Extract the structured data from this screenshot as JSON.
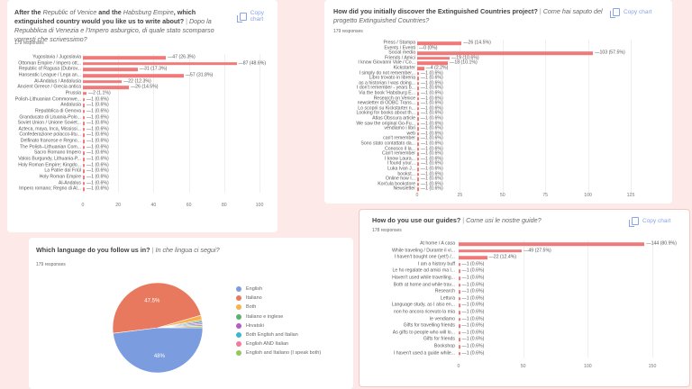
{
  "copy_chart_label": "Copy chart",
  "charts": [
    {
      "id": "c1",
      "title_bold_1": "After the ",
      "title_it_1": "Republic of Venice",
      "title_bold_2": " and the ",
      "title_it_2": "Habsburg Empire",
      "title_bold_3": ", which extinguished country would you like us to write about?",
      "title_sep": " | ",
      "title_italian": "Dopo la Repubblica di Venezia e l'Impero asburgico, di quale stato scomparso vorresti che scrivessimo?",
      "responses": "179 responses",
      "chart_data": {
        "type": "bar",
        "orientation": "horizontal",
        "xlim": [
          0,
          100
        ],
        "ticks": [
          0,
          20,
          40,
          60,
          80,
          100
        ],
        "grid": true,
        "color": "#f07a7a",
        "categories": [
          "Yugoslavia / Jugoslavia",
          "Ottoman Empire / Impero ott...",
          "Republic of Ragusa (Dubrov...",
          "Hanseatic League / Lega an...",
          "Al-Andalus / Andalusia",
          "Ancient Greece / Grecia antica",
          "Prussia",
          "Polish-Lithuanian Commonwe...",
          "Andalusia",
          "Repubblica di Genova",
          "Granducato di Lituania-Polo...",
          "Soviet Union / Unione Soviet...",
          "Azteca, maya, Inca, Mississi...",
          "Confederazione polacco-litu...",
          "Delfinato francese e Regno...",
          "The Polish–Lithuanian Com...",
          "Sacro Romano Impero",
          "Valois Burgundy, Lithuania-P...",
          "Holy Roman Empire; Kingdo...",
          "La Patrie dal Friûl",
          "Holy Roman Empire",
          "Al-Andalus",
          "Impero romano; Regno di Al..."
        ],
        "values": [
          47,
          87,
          31,
          57,
          22,
          26,
          2,
          1,
          1,
          1,
          1,
          1,
          1,
          1,
          1,
          1,
          1,
          1,
          1,
          1,
          1,
          1,
          1
        ],
        "labels": [
          "47 (26.3%)",
          "87 (48.6%)",
          "31 (17.3%)",
          "57 (31.8%)",
          "22 (12.3%)",
          "26 (14.5%)",
          "2 (1.1%)",
          "1 (0.6%)",
          "1 (0.6%)",
          "1 (0.6%)",
          "1 (0.6%)",
          "1 (0.6%)",
          "1 (0.6%)",
          "1 (0.6%)",
          "1 (0.6%)",
          "1 (0.6%)",
          "1 (0.6%)",
          "1 (0.6%)",
          "1 (0.6%)",
          "1 (0.6%)",
          "1 (0.6%)",
          "1 (0.6%)",
          "1 (0.6%)"
        ]
      }
    },
    {
      "id": "c2",
      "title_bold_1": "How did you initially discover the Extinguished Countries project?",
      "title_sep": " | ",
      "title_italian": "Come hai saputo del progetto Extinguished Countries?",
      "responses": "179 responses",
      "chart_data": {
        "type": "bar",
        "orientation": "horizontal",
        "xlim": [
          0,
          125
        ],
        "ticks": [
          0,
          25,
          50,
          75,
          100,
          125
        ],
        "grid": true,
        "color": "#f07a7a",
        "categories": [
          "Press / Stampa",
          "Events / Eventi",
          "Social media",
          "Friends / Amici",
          "I know Giovanni Vale / Co...",
          "Kickstarter",
          "I simply do not remember...",
          "Libro trovato in libreria",
          "as a historian I was doing...",
          "I don't remember - years b...",
          "Via the book 'Habsburg E...",
          "Research on Venice",
          "newsletter di ODBC Trans...",
          "Lo scoprii su Kickstarter n...",
          "Looking for books about th...",
          "Atlas Obscura article",
          "We saw the original Go-Fu...",
          "vendiamo i libri",
          "web",
          "can't remember",
          "Sono stato contattato da...",
          "Conosco il la...",
          "Can't remember",
          "I know Laura...",
          "I found your...",
          "Luka Ivan J...",
          "bookst...",
          "Online how I...",
          "Korčula bookstore",
          "Newsletter"
        ],
        "values": [
          26,
          0,
          103,
          19,
          18,
          4,
          1,
          1,
          1,
          1,
          1,
          1,
          1,
          1,
          1,
          1,
          1,
          1,
          1,
          1,
          1,
          1,
          1,
          1,
          1,
          1,
          1,
          1,
          1,
          1
        ],
        "labels": [
          "26 (14.5%)",
          "0 (0%)",
          "103 (57.5%)",
          "19 (10.6%)",
          "18 (10.1%)",
          "4 (2.2%)",
          "1 (0.6%)",
          "1 (0.6%)",
          "1 (0.6%)",
          "1 (0.6%)",
          "1 (0.6%)",
          "1 (0.6%)",
          "1 (0.6%)",
          "1 (0.6%)",
          "1 (0.6%)",
          "1 (0.6%)",
          "1 (0.6%)",
          "1 (0.6%)",
          "1 (0.6%)",
          "1 (0.6%)",
          "1 (0.6%)",
          "1 (0.6%)",
          "1 (0.6%)",
          "1 (0.6%)",
          "1 (0.6%)",
          "1 (0.6%)",
          "1 (0.6%)",
          "1 (0.6%)",
          "1 (0.6%)",
          "1 (0.6%)"
        ]
      }
    },
    {
      "id": "c3",
      "title_bold_1": "How do you use our guides?",
      "title_sep": " | ",
      "title_italian": "Come usi le nostre guide?",
      "responses": "178 responses",
      "chart_data": {
        "type": "bar",
        "orientation": "horizontal",
        "xlim": [
          0,
          150
        ],
        "ticks": [
          0,
          50,
          100,
          150
        ],
        "grid": true,
        "color": "#f07a7a",
        "categories": [
          "At home / A casa",
          "While traveling / Durante il vi...",
          "I haven't bought one (yet!) /...",
          "I am a history buff",
          "Le ho regalate ad amici ma l...",
          "Haven't used while travelling...",
          "Both at home and while trav...",
          "Research",
          "Lettura",
          "Language study, as I also en...",
          "non ho ancora ricevuto la mia",
          "le vendiamo",
          "Gifts for travelling friends",
          "As gifts to people who will lo...",
          "Gifts for friends",
          "Bookshop",
          "I haven't used a guide while..."
        ],
        "values": [
          144,
          49,
          22,
          1,
          1,
          1,
          1,
          1,
          1,
          1,
          1,
          1,
          1,
          1,
          1,
          1,
          1
        ],
        "labels": [
          "144 (80.9%)",
          "49 (27.5%)",
          "22 (12.4%)",
          "1 (0.6%)",
          "1 (0.6%)",
          "1 (0.6%)",
          "1 (0.6%)",
          "1 (0.6%)",
          "1 (0.6%)",
          "1 (0.6%)",
          "1 (0.6%)",
          "1 (0.6%)",
          "1 (0.6%)",
          "1 (0.6%)",
          "1 (0.6%)",
          "1 (0.6%)",
          "1 (0.6%)"
        ]
      }
    },
    {
      "id": "c4",
      "title_bold_1": "Which language do you follow us in?",
      "title_sep": " | ",
      "title_italian": "In che lingua ci segui?",
      "responses": "179 responses",
      "chart_data": {
        "type": "pie",
        "legend": "right",
        "categories": [
          "English",
          "Italiano",
          "Both",
          "Italiano e inglese",
          "Hrvatski",
          "Both English and Italian",
          "English AND Italian",
          "English and Italiano (I speak both)"
        ],
        "values": [
          86,
          85,
          3,
          1,
          1,
          1,
          1,
          1
        ],
        "slice_labels": [
          "48%",
          "47.5%",
          "",
          "",
          "",
          "",
          "",
          ""
        ],
        "colors": [
          "#7b9de0",
          "#e8795f",
          "#f8b14d",
          "#57b36c",
          "#b35cc2",
          "#3db6cc",
          "#f27a9c",
          "#94c75a"
        ]
      }
    }
  ]
}
